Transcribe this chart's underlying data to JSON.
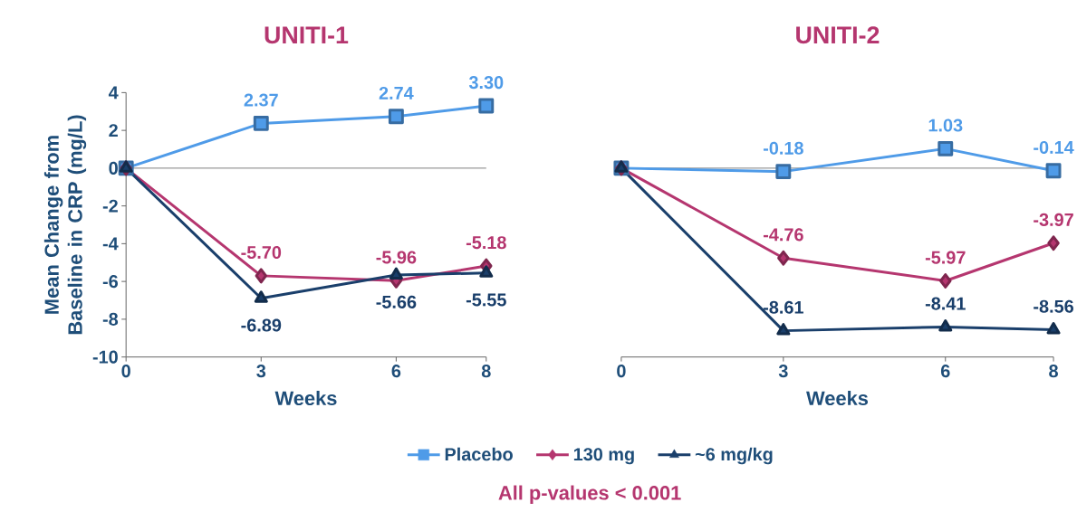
{
  "chart_data": [
    {
      "type": "line",
      "title": "UNITI-1",
      "xlabel": "Weeks",
      "ylabel": "Mean Change from Baseline in CRP (mg/L)",
      "x": [
        0,
        3,
        6,
        8
      ],
      "xlim": [
        0,
        8
      ],
      "xticks": [
        0,
        3,
        6,
        8
      ],
      "ylim": [
        -10,
        4
      ],
      "yticks": [
        -10,
        -8,
        -6,
        -4,
        -2,
        0,
        2,
        4
      ],
      "legend": "bottom",
      "ref_lines": [
        {
          "axis": "y",
          "value": 0,
          "color": "#7f7f7f"
        }
      ],
      "annotations": [
        "All p-values < 0.001"
      ],
      "series": [
        {
          "name": "Placebo",
          "color": "#4f9be8",
          "marker": "square",
          "values": [
            0,
            2.37,
            2.74,
            3.3
          ],
          "value_labels": [
            null,
            "2.37",
            "2.74",
            "3.30"
          ]
        },
        {
          "name": "130 mg",
          "color": "#b5366f",
          "marker": "diamond",
          "values": [
            0,
            -5.7,
            -5.96,
            -5.18
          ],
          "value_labels": [
            null,
            "-5.70",
            "-5.96",
            "-5.18"
          ]
        },
        {
          "name": "~6 mg/kg",
          "color": "#1a3f6b",
          "marker": "triangle",
          "values": [
            0,
            -6.89,
            -5.66,
            -5.55
          ],
          "value_labels": [
            null,
            "-6.89",
            "-5.66",
            "-5.55"
          ]
        }
      ]
    },
    {
      "type": "line",
      "title": "UNITI-2",
      "xlabel": "Weeks",
      "x": [
        0,
        3,
        6,
        8
      ],
      "xlim": [
        0,
        8
      ],
      "xticks": [
        0,
        3,
        6,
        8
      ],
      "ylim": [
        -10,
        4
      ],
      "yticks": [
        -10,
        -8,
        -6,
        -4,
        -2,
        0,
        2,
        4
      ],
      "tick_labels": "x",
      "ref_lines": [
        {
          "axis": "y",
          "value": 0,
          "color": "#7f7f7f"
        }
      ],
      "series": [
        {
          "color": "#4f9be8",
          "marker": "square",
          "values": [
            0,
            -0.18,
            1.03,
            -0.14
          ],
          "value_labels": [
            null,
            "-0.18",
            "1.03",
            "-0.14"
          ]
        },
        {
          "color": "#b5366f",
          "marker": "diamond",
          "values": [
            0,
            -4.76,
            -5.97,
            -3.97
          ],
          "value_labels": [
            null,
            "-4.76",
            "-5.97",
            "-3.97"
          ]
        },
        {
          "color": "#1a3f6b",
          "marker": "triangle",
          "values": [
            0,
            -8.61,
            -8.41,
            -8.56
          ],
          "value_labels": [
            null,
            "-8.61",
            "-8.41",
            "-8.56"
          ]
        }
      ]
    }
  ]
}
